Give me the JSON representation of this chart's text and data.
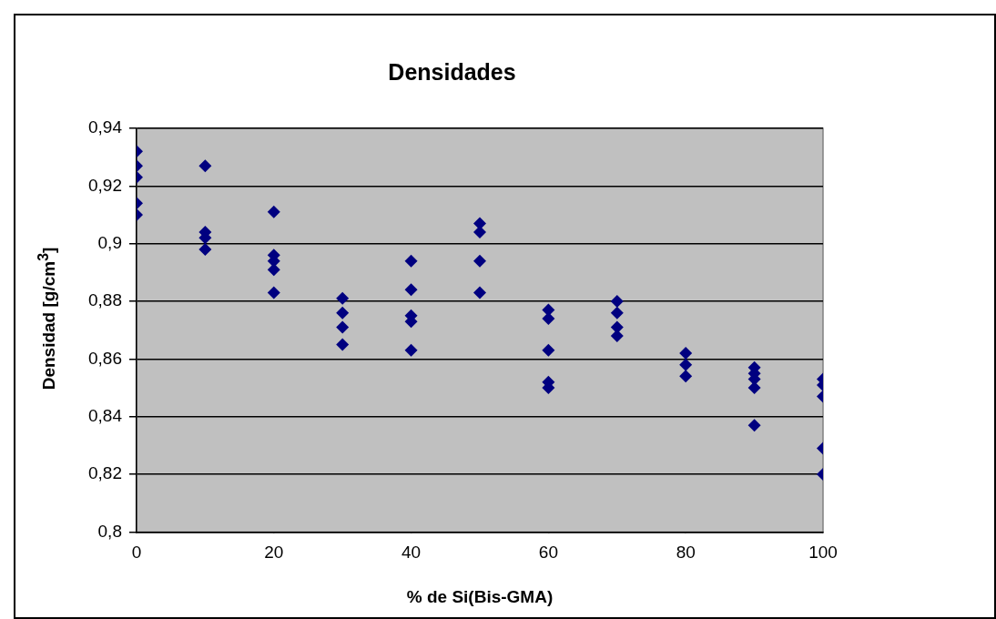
{
  "chart_data": {
    "type": "scatter",
    "title": "Densidades",
    "xlabel": "% de Si(Bis-GMA)",
    "ylabel": "Densidad [g/cm$^{3}$]",
    "x": [
      0,
      0,
      0,
      0,
      0,
      10,
      10,
      10,
      10,
      20,
      20,
      20,
      20,
      20,
      30,
      30,
      30,
      30,
      40,
      40,
      40,
      40,
      40,
      50,
      50,
      50,
      50,
      60,
      60,
      60,
      60,
      60,
      70,
      70,
      70,
      70,
      80,
      80,
      80,
      90,
      90,
      90,
      90,
      90,
      100,
      100,
      100,
      100,
      100
    ],
    "series": [
      {
        "color": "#000080",
        "values": [
          0.932,
          0.927,
          0.923,
          0.914,
          0.91,
          0.927,
          0.904,
          0.902,
          0.898,
          0.911,
          0.896,
          0.894,
          0.891,
          0.883,
          0.881,
          0.876,
          0.871,
          0.865,
          0.894,
          0.884,
          0.875,
          0.873,
          0.863,
          0.907,
          0.904,
          0.894,
          0.883,
          0.877,
          0.874,
          0.863,
          0.852,
          0.85,
          0.88,
          0.876,
          0.871,
          0.868,
          0.862,
          0.858,
          0.854,
          0.857,
          0.855,
          0.853,
          0.85,
          0.837,
          0.853,
          0.851,
          0.847,
          0.829,
          0.82
        ]
      }
    ],
    "xlim": [
      0,
      100
    ],
    "xticks": [
      0,
      20,
      40,
      60,
      80,
      100
    ],
    "ylim": [
      0.8,
      0.94
    ],
    "yticks": [
      {
        "value": 0.8,
        "label": "0,8"
      },
      {
        "value": 0.82,
        "label": "0,82"
      },
      {
        "value": 0.84,
        "label": "0,84"
      },
      {
        "value": 0.86,
        "label": "0,86"
      },
      {
        "value": 0.88,
        "label": "0,88"
      },
      {
        "value": 0.9,
        "label": "0,9"
      },
      {
        "value": 0.92,
        "label": "0,92"
      },
      {
        "value": 0.94,
        "label": "0,94"
      }
    ],
    "grid": "y",
    "legend": false,
    "marker": "diamond"
  }
}
